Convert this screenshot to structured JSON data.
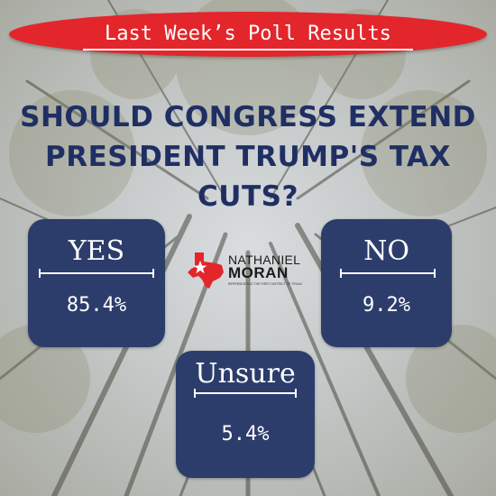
{
  "banner": {
    "title": "Last Week’s Poll Results"
  },
  "question": {
    "line1": "SHOULD CONGRESS EXTEND",
    "line2": "PRESIDENT TRUMP'S TAX CUTS?"
  },
  "results": {
    "yes": {
      "label": "YES",
      "value": "85.4%"
    },
    "no": {
      "label": "NO",
      "value": "9.2%"
    },
    "unsure": {
      "label": "Unsure",
      "value": "5.4%"
    }
  },
  "logo": {
    "first": "NATHANIEL",
    "last": "MORAN",
    "tagline": "REPRESENTING THE FIRST DISTRICT OF TEXAS"
  },
  "colors": {
    "banner": "#e3262b",
    "heading": "#1f2f63",
    "box": "#2c3d6c",
    "text_on_box": "#ffffff"
  }
}
